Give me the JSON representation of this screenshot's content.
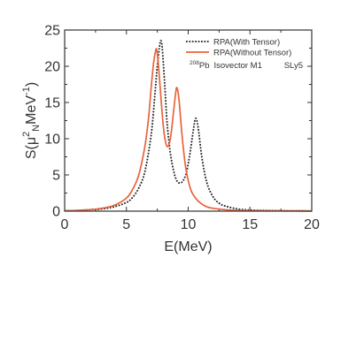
{
  "chart_data": {
    "type": "line",
    "xlabel": "E(MeV)",
    "ylabel_main": "S(μ",
    "ylabel_sup": "2",
    "ylabel_sub": "N",
    "ylabel_tail": "MeV",
    "ylabel_tail_sup": "-1",
    "ylabel_close": ")",
    "xlim": [
      0,
      20
    ],
    "ylim": [
      0,
      25
    ],
    "xticks": [
      0,
      5,
      10,
      15,
      20
    ],
    "yticks": [
      0,
      5,
      10,
      15,
      20,
      25
    ],
    "xtick_labels": [
      "0",
      "5",
      "10",
      "15",
      "20"
    ],
    "ytick_labels": [
      "0",
      "5",
      "10",
      "15",
      "20",
      "25"
    ],
    "annotation": {
      "mass_number": "208",
      "element": "Pb",
      "text": "Isovector M1",
      "force": "SLy5"
    },
    "legend_position": "top-right",
    "series": [
      {
        "name": "RPA(With Tensor)",
        "color": "#222222",
        "style": "dotted",
        "x": [
          0.0,
          1.0,
          2.0,
          3.0,
          4.0,
          5.0,
          5.5,
          6.0,
          6.5,
          7.0,
          7.3,
          7.5,
          7.7,
          7.8,
          7.9,
          8.1,
          8.3,
          8.6,
          9.0,
          9.4,
          9.8,
          10.1,
          10.4,
          10.6,
          10.8,
          11.1,
          11.5,
          12.0,
          12.5,
          13.0,
          14.0,
          15.0,
          16.0,
          17.0,
          18.0,
          19.0,
          20.0
        ],
        "y": [
          0.05,
          0.1,
          0.2,
          0.3,
          0.6,
          1.2,
          1.9,
          3.2,
          5.5,
          10.5,
          16.0,
          20.0,
          23.0,
          23.5,
          22.5,
          17.5,
          12.0,
          7.5,
          4.5,
          3.9,
          5.0,
          7.5,
          11.0,
          12.8,
          11.6,
          7.5,
          4.0,
          2.0,
          1.1,
          0.7,
          0.3,
          0.15,
          0.1,
          0.07,
          0.05,
          0.04,
          0.03
        ]
      },
      {
        "name": "RPA(Without Tensor)",
        "color": "#e8643c",
        "style": "solid",
        "x": [
          0.0,
          1.0,
          2.0,
          3.0,
          4.0,
          5.0,
          5.5,
          6.0,
          6.5,
          6.8,
          7.0,
          7.2,
          7.35,
          7.45,
          7.6,
          7.8,
          8.0,
          8.2,
          8.4,
          8.6,
          8.8,
          9.0,
          9.1,
          9.25,
          9.5,
          9.8,
          10.2,
          10.6,
          11.0,
          11.5,
          12.0,
          13.0,
          14.0,
          15.0,
          16.0,
          17.0,
          18.0,
          19.0,
          20.0
        ],
        "y": [
          0.05,
          0.1,
          0.2,
          0.4,
          0.8,
          1.8,
          3.0,
          5.0,
          9.0,
          13.0,
          17.0,
          20.5,
          22.0,
          22.3,
          20.0,
          15.5,
          11.5,
          9.3,
          9.0,
          10.5,
          13.5,
          16.5,
          17.0,
          15.5,
          10.5,
          6.0,
          3.0,
          1.8,
          1.1,
          0.6,
          0.4,
          0.2,
          0.1,
          0.07,
          0.05,
          0.04,
          0.03,
          0.03,
          0.02
        ]
      }
    ]
  }
}
